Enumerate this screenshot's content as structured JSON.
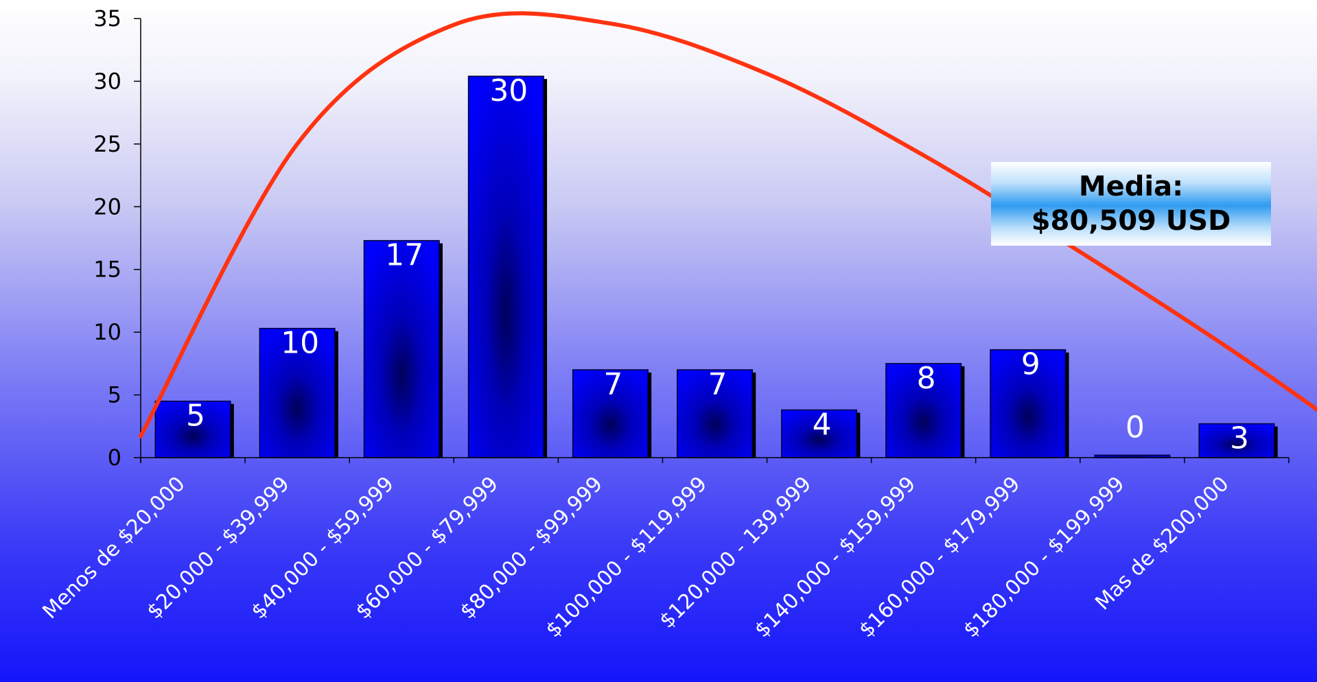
{
  "chart_data": {
    "type": "bar",
    "categories": [
      "Menos de $20,000",
      "$20,000 - $39,999",
      "$40,000 - $59,999",
      "$60,000 - $79,999",
      "$80,000 - $99,999",
      "$100,000 - $119,999",
      "$120,000 - 139,999",
      "$140,000 - $159,999",
      "$160,000 - $179,999",
      "$180,000 - $199,999",
      "Mas de $200,000"
    ],
    "values": [
      4.5,
      10.3,
      17.3,
      30.4,
      7,
      7,
      3.8,
      7.5,
      8.6,
      0.2,
      2.7
    ],
    "data_labels": [
      "5",
      "10",
      "17",
      "30",
      "7",
      "7",
      "4",
      "8",
      "9",
      "0",
      "3"
    ],
    "ylim": [
      0,
      35
    ],
    "yticks": [
      0,
      5,
      10,
      15,
      20,
      25,
      30,
      35
    ],
    "grid": false,
    "curve": {
      "type": "line",
      "x": [
        0,
        1.5,
        3,
        4.5,
        6,
        7.5,
        9,
        10.5,
        11.85
      ],
      "values": [
        1.7,
        25.0,
        34.5,
        34.6,
        30.6,
        24.1,
        16.4,
        8.3,
        0.4
      ],
      "color": "#ff3311"
    },
    "annotation": {
      "line1": "Media:",
      "line2": "$80,509 USD"
    },
    "colors": {
      "bar": "#0000ff",
      "bar_dark": "#00005a",
      "bar_shadow": "#000000"
    }
  }
}
